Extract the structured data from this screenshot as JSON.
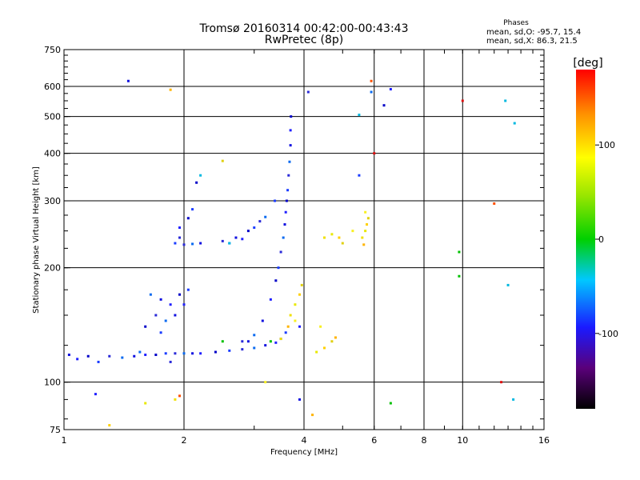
{
  "title_line1": "Tromsø 20160314 00:42:00-00:43:43",
  "title_line2": "RwPretec (8p)",
  "stats": {
    "header": "Phases",
    "line1": "mean, sd,O: -95.7, 15.4",
    "line2": "mean, sd,X:  86.3, 21.5"
  },
  "colorbar": {
    "label": "[deg]",
    "ticks": [
      "100",
      "0",
      "-100"
    ],
    "tick_values": [
      100,
      0,
      -100
    ],
    "range": [
      -180,
      180
    ]
  },
  "chart_data": {
    "type": "scatter",
    "xlabel": "Frequency [MHz]",
    "ylabel": "Stationary phase Virtual Height [km]",
    "xscale": "log",
    "yscale": "log",
    "xlim": [
      1,
      16
    ],
    "ylim": [
      75,
      750
    ],
    "x_ticks": [
      1,
      2,
      4,
      6,
      8,
      10,
      16
    ],
    "x_tick_labels": [
      "1",
      "2",
      "4",
      "6",
      "8",
      "10",
      "16"
    ],
    "y_ticks": [
      75,
      100,
      200,
      300,
      400,
      500,
      600,
      750
    ],
    "y_tick_labels": [
      "75",
      "100",
      "200",
      "300",
      "400",
      "500",
      "600",
      "750"
    ],
    "x_gridlines": [
      2,
      4,
      6,
      8,
      10
    ],
    "y_gridlines": [
      100,
      200,
      300,
      400,
      500,
      600
    ],
    "grid": true,
    "o_trace": [
      [
        1.03,
        118
      ],
      [
        1.08,
        115
      ],
      [
        1.15,
        117
      ],
      [
        1.22,
        113
      ],
      [
        1.3,
        117
      ],
      [
        1.4,
        116
      ],
      [
        1.5,
        117
      ],
      [
        1.6,
        118
      ],
      [
        1.7,
        118
      ],
      [
        1.8,
        119
      ],
      [
        1.9,
        119
      ],
      [
        2.0,
        119
      ],
      [
        2.1,
        119
      ],
      [
        2.2,
        119
      ],
      [
        2.4,
        120
      ],
      [
        2.6,
        121
      ],
      [
        2.8,
        122
      ],
      [
        3.0,
        123
      ],
      [
        3.2,
        125
      ],
      [
        3.4,
        127
      ],
      [
        3.5,
        130
      ],
      [
        3.6,
        135
      ],
      [
        2.8,
        128
      ],
      [
        3.0,
        133
      ],
      [
        3.15,
        145
      ],
      [
        3.3,
        165
      ],
      [
        3.4,
        185
      ],
      [
        3.45,
        200
      ],
      [
        3.5,
        220
      ],
      [
        3.55,
        240
      ],
      [
        3.58,
        260
      ],
      [
        3.6,
        280
      ],
      [
        3.62,
        300
      ],
      [
        3.64,
        320
      ],
      [
        3.66,
        350
      ],
      [
        3.68,
        380
      ],
      [
        3.7,
        420
      ],
      [
        3.7,
        460
      ],
      [
        3.71,
        500
      ],
      [
        1.9,
        232
      ],
      [
        2.0,
        230
      ],
      [
        2.1,
        231
      ],
      [
        2.2,
        232
      ],
      [
        1.95,
        255
      ],
      [
        2.05,
        270
      ],
      [
        2.1,
        285
      ],
      [
        1.95,
        240
      ],
      [
        1.65,
        170
      ],
      [
        1.75,
        165
      ],
      [
        1.85,
        160
      ],
      [
        1.95,
        170
      ],
      [
        2.05,
        175
      ],
      [
        1.7,
        150
      ],
      [
        1.8,
        145
      ],
      [
        1.9,
        150
      ],
      [
        2.0,
        160
      ],
      [
        1.6,
        140
      ],
      [
        1.75,
        135
      ],
      [
        2.5,
        235
      ],
      [
        2.6,
        232
      ],
      [
        2.7,
        240
      ],
      [
        2.8,
        238
      ],
      [
        2.9,
        250
      ],
      [
        3.0,
        255
      ],
      [
        3.1,
        265
      ],
      [
        3.2,
        272
      ],
      [
        1.45,
        620
      ],
      [
        6.6,
        590
      ],
      [
        6.35,
        535
      ],
      [
        5.5,
        350
      ],
      [
        4.1,
        580
      ],
      [
        5.9,
        580
      ],
      [
        3.9,
        90
      ],
      [
        1.2,
        93
      ],
      [
        2.15,
        335
      ],
      [
        3.38,
        300
      ],
      [
        1.85,
        113
      ],
      [
        1.55,
        120
      ],
      [
        2.9,
        128
      ],
      [
        3.9,
        140
      ]
    ],
    "x_trace": [
      [
        3.7,
        150
      ],
      [
        3.8,
        160
      ],
      [
        3.9,
        170
      ],
      [
        3.95,
        180
      ],
      [
        3.8,
        145
      ],
      [
        3.65,
        140
      ],
      [
        3.5,
        130
      ],
      [
        4.3,
        120
      ],
      [
        4.5,
        123
      ],
      [
        4.7,
        128
      ],
      [
        4.4,
        140
      ],
      [
        4.8,
        131
      ],
      [
        5.6,
        240
      ],
      [
        5.7,
        250
      ],
      [
        5.75,
        260
      ],
      [
        5.8,
        270
      ],
      [
        5.7,
        280
      ],
      [
        5.65,
        230
      ],
      [
        4.5,
        240
      ],
      [
        4.7,
        245
      ],
      [
        4.9,
        240
      ],
      [
        5.0,
        232
      ],
      [
        5.3,
        250
      ],
      [
        1.85,
        588
      ],
      [
        1.9,
        90
      ],
      [
        1.6,
        88
      ],
      [
        1.3,
        77
      ],
      [
        2.5,
        382
      ],
      [
        3.2,
        100
      ],
      [
        4.2,
        82
      ]
    ],
    "green_points": [
      [
        6.6,
        88
      ],
      [
        9.8,
        220
      ],
      [
        9.8,
        190
      ],
      [
        3.3,
        128
      ],
      [
        2.5,
        128
      ]
    ],
    "red_points": [
      [
        10.0,
        550
      ],
      [
        12.0,
        295
      ],
      [
        12.5,
        100
      ],
      [
        5.9,
        620
      ],
      [
        6.0,
        400
      ],
      [
        1.95,
        92
      ]
    ],
    "cyan_points": [
      [
        13.5,
        480
      ],
      [
        12.8,
        550
      ],
      [
        13.0,
        180
      ],
      [
        13.4,
        90
      ],
      [
        5.5,
        505
      ],
      [
        2.2,
        350
      ],
      [
        2.6,
        232
      ]
    ],
    "legend": "none"
  }
}
